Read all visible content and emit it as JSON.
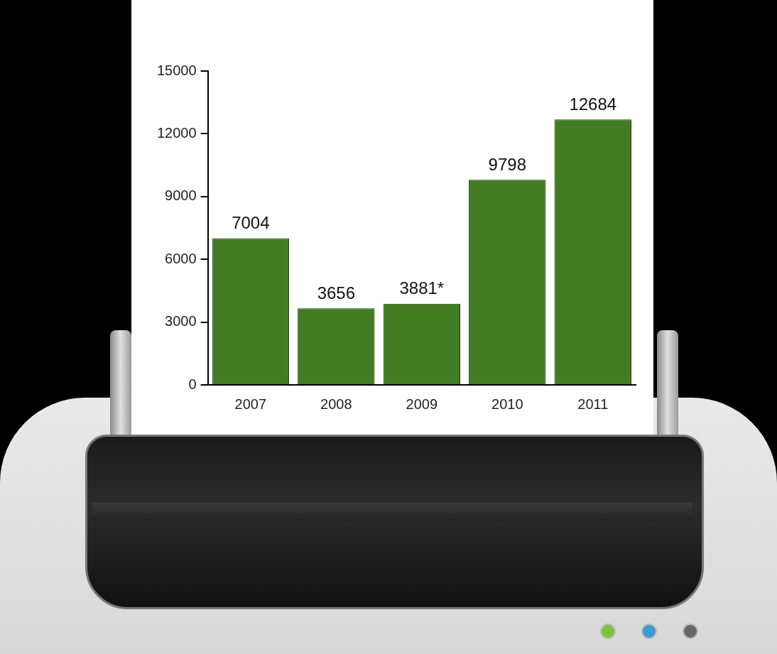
{
  "chart_data": {
    "type": "bar",
    "categories": [
      "2007",
      "2008",
      "2009",
      "2010",
      "2011"
    ],
    "values": [
      7004,
      3656,
      3881,
      9798,
      12684
    ],
    "value_labels": [
      "7004",
      "3656",
      "3881*",
      "9798",
      "12684"
    ],
    "color": "#437d23",
    "ylim": [
      0,
      15000
    ],
    "yticks": [
      0,
      3000,
      6000,
      9000,
      12000,
      15000
    ],
    "grid": false,
    "data_labels": true
  }
}
